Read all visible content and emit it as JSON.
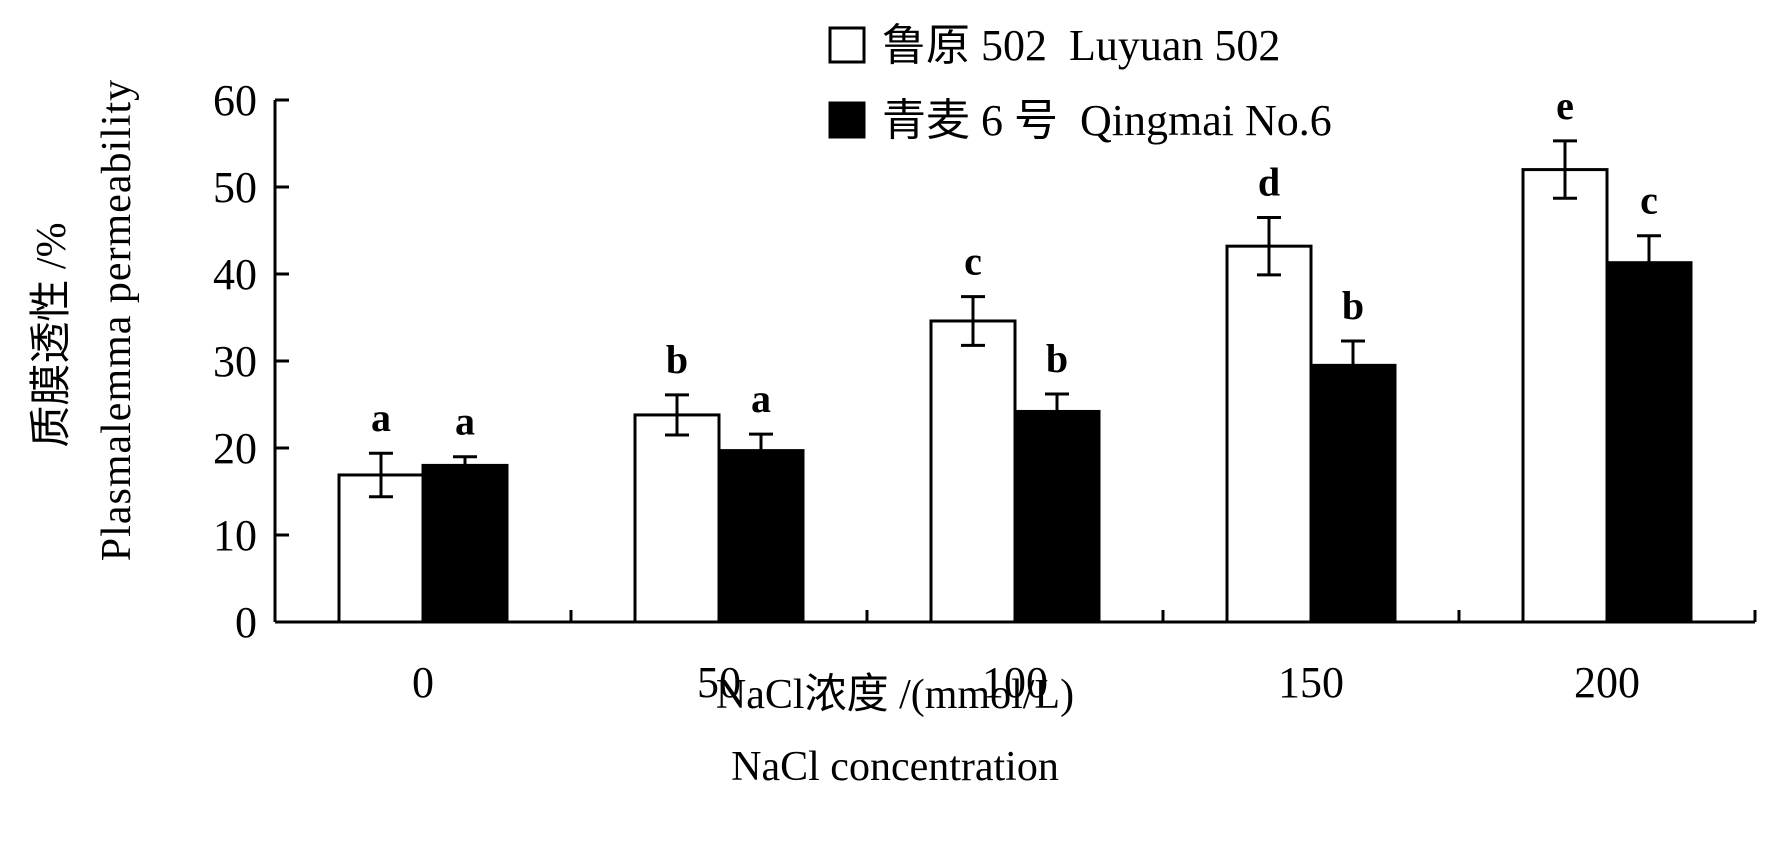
{
  "chart_data": {
    "type": "bar",
    "categories": [
      "0",
      "50",
      "100",
      "150",
      "200"
    ],
    "series": [
      {
        "name": "鲁原 502  Luyuan 502",
        "fill": "#ffffff",
        "values": [
          16.9,
          23.8,
          34.6,
          43.2,
          52.0
        ],
        "errors": [
          2.5,
          2.3,
          2.8,
          3.3,
          3.3
        ],
        "significance": [
          "a",
          "b",
          "c",
          "d",
          "e"
        ]
      },
      {
        "name": "青麦 6 号  Qingmai No.6",
        "fill": "#000000",
        "values": [
          18.0,
          19.7,
          24.2,
          29.5,
          41.3
        ],
        "errors": [
          1.0,
          1.9,
          2.0,
          2.8,
          3.1
        ],
        "significance": [
          "a",
          "a",
          "b",
          "b",
          "c"
        ]
      }
    ],
    "ylim": [
      0,
      60
    ],
    "yticks": [
      0,
      10,
      20,
      30,
      40,
      50,
      60
    ],
    "ylabel_cn": "质膜透性 /%",
    "ylabel_en": "Plasmalemma permeability",
    "xlabel_cn": "NaCl浓度 /(mmol/L)",
    "xlabel_en": "NaCl concentration",
    "legend_position": "top",
    "grid": false
  }
}
